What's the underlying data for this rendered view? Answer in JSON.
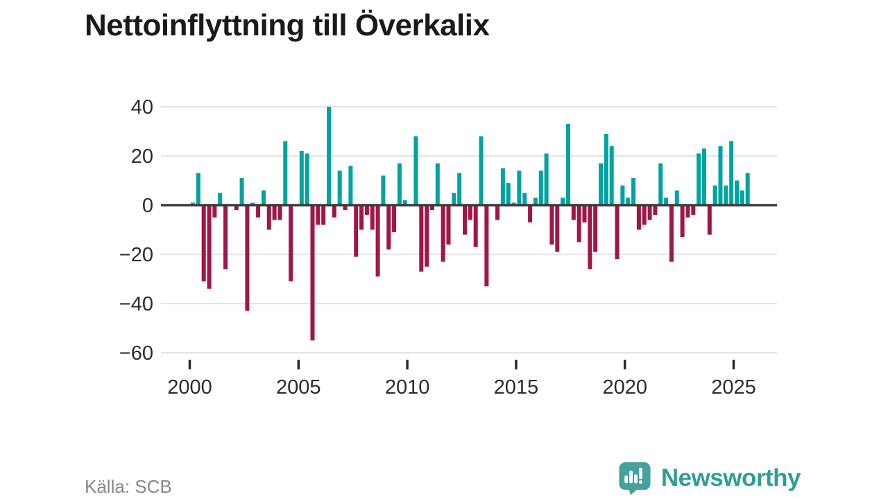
{
  "title": "Nettoinflyttning till Överkalix",
  "source": "Källa: SCB",
  "brand": {
    "name": "Newsworthy",
    "icon": "newsworthy-speech-bubble-bar-chart-icon",
    "icon_color": "#45a19e",
    "text_color": "#2f9d99"
  },
  "colors": {
    "positive_bar": "#00a3a0",
    "negative_bar": "#a01648",
    "gridline": "#e4e4e4",
    "zero_line": "#3a3a3a",
    "axis_text": "#2b2b2b",
    "title_text": "#1a1a1a",
    "source_text": "#87878f"
  },
  "chart_data": {
    "type": "bar",
    "title": "Nettoinflyttning till Överkalix",
    "frequency": "quarterly",
    "start_period": "2000-Q1",
    "end_period": "2025-Q3",
    "values": [
      1,
      13,
      -31,
      -34,
      -5,
      5,
      -26,
      0,
      -2,
      11,
      -43,
      1,
      -5,
      6,
      -10,
      -6,
      -6,
      26,
      -31,
      0,
      22,
      21,
      -55,
      -8,
      -8,
      40,
      -5,
      14,
      -2,
      16,
      -21,
      -10,
      -4,
      -10,
      -29,
      12,
      -18,
      -11,
      17,
      2,
      0,
      28,
      -27,
      -25,
      -2,
      17,
      -23,
      -16,
      5,
      13,
      -12,
      -6,
      -17,
      28,
      -33,
      0,
      -6,
      15,
      9,
      1,
      14,
      5,
      -7,
      3,
      14,
      21,
      -16,
      -19,
      3,
      33,
      -6,
      -15,
      -7,
      -26,
      -19,
      17,
      29,
      24,
      -22,
      8,
      3,
      11,
      -10,
      -8,
      -6,
      -4,
      17,
      3,
      -23,
      6,
      -13,
      -5,
      -4,
      21,
      23,
      -12,
      8,
      24,
      8,
      26,
      10,
      6,
      13
    ],
    "x_tick_labels": [
      "2000",
      "2005",
      "2010",
      "2015",
      "2020",
      "2025"
    ],
    "y_ticks": [
      40,
      20,
      0,
      -20,
      -40,
      -60
    ],
    "ylim": [
      -60,
      45
    ],
    "xlabel": "",
    "ylabel": "",
    "grid": true,
    "legend": false
  }
}
